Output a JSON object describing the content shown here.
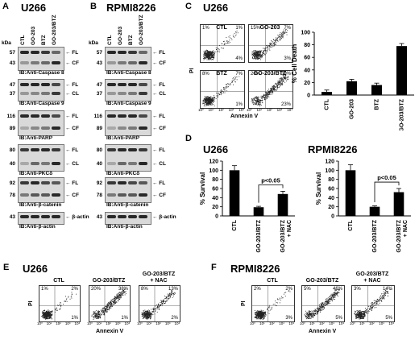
{
  "panels": {
    "A": {
      "letter": "A",
      "title": "U266",
      "lanes": [
        "CTL",
        "GO-203",
        "BTZ",
        "GO-203/BTZ"
      ],
      "kda_label": "kDa",
      "blots": [
        {
          "mw": [
            "57",
            "43"
          ],
          "arrows": [
            "FL",
            "CF"
          ],
          "ib": "IB:Anti-Caspase 8"
        },
        {
          "mw": [
            "47",
            "37"
          ],
          "arrows": [
            "FL",
            "CL"
          ],
          "ib": "IB:Anti-Caspase 9"
        },
        {
          "mw": [
            "116",
            "89"
          ],
          "arrows": [
            "FL",
            "CF"
          ],
          "ib": "IB:Anti-PARP"
        },
        {
          "mw": [
            "80",
            "40"
          ],
          "arrows": [
            "FL",
            "CL"
          ],
          "ib": "IB:Anti-PKCδ"
        },
        {
          "mw": [
            "92",
            "78"
          ],
          "arrows": [
            "FL",
            "CF"
          ],
          "ib": "IB:Anti-β-catenin"
        },
        {
          "mw": [
            "43"
          ],
          "arrows": [
            "β-actin"
          ],
          "ib": "IB:Anti-β-actin"
        }
      ]
    },
    "B": {
      "letter": "B",
      "title": "RPMI8226",
      "lanes": [
        "CTL",
        "GO-203",
        "BTZ",
        "GO-203/BTZ"
      ],
      "kda_label": "kDa",
      "blots": [
        {
          "mw": [
            "57",
            "43"
          ],
          "arrows": [
            "FL",
            "CF"
          ],
          "ib": "IB:Anti-Caspase 8"
        },
        {
          "mw": [
            "47",
            "37"
          ],
          "arrows": [
            "FL",
            "CL"
          ],
          "ib": "IB:Anti-Caspase 9"
        },
        {
          "mw": [
            "116",
            "89"
          ],
          "arrows": [
            "FL",
            "CF"
          ],
          "ib": "IB:Anti-PARP"
        },
        {
          "mw": [
            "80",
            "40"
          ],
          "arrows": [
            "FL",
            "CL"
          ],
          "ib": "IB:Anti-PKCδ"
        },
        {
          "mw": [
            "92",
            "78"
          ],
          "arrows": [
            "FL",
            "CF"
          ],
          "ib": "IB:Anti-β-catenin"
        },
        {
          "mw": [
            "43"
          ],
          "arrows": [
            "β-actin"
          ],
          "ib": "IB:Anti-β-actin"
        }
      ]
    },
    "C": {
      "letter": "C",
      "title": "U266",
      "x_axis": "Annexin V",
      "y_axis": "PI",
      "plots": [
        {
          "label": "CTL",
          "q": [
            "1%",
            "1%",
            "",
            "4%"
          ]
        },
        {
          "label": "GO-203",
          "q": [
            "15%",
            "7%",
            "",
            "3%"
          ]
        },
        {
          "label": "BTZ",
          "q": [
            "8%",
            "7%",
            "",
            "1%"
          ]
        },
        {
          "label": "GO-203/BTZ",
          "q": [
            "20%",
            "39%",
            "",
            "23%"
          ]
        }
      ]
    },
    "D": {
      "letter": "D",
      "title_left": "U266",
      "title_right": "RPMI8226"
    },
    "E": {
      "letter": "E",
      "title": "U266",
      "x_axis": "Annexin V",
      "y_axis": "PI",
      "plots": [
        {
          "label": "CTL",
          "q": [
            "1%",
            "2%",
            "",
            "1%"
          ]
        },
        {
          "label": "GO-203/BTZ",
          "q": [
            "20%",
            "38%",
            "",
            "1%"
          ]
        },
        {
          "label": "GO-203/BTZ\n+ NAC",
          "q": [
            "8%",
            "13%",
            "",
            "2%"
          ]
        }
      ]
    },
    "F": {
      "letter": "F",
      "title": "RPMI8226",
      "x_axis": "Annexin V",
      "y_axis": "PI",
      "plots": [
        {
          "label": "CTL",
          "q": [
            "2%",
            "2%",
            "",
            "3%"
          ]
        },
        {
          "label": "GO-203/BTZ",
          "q": [
            "5%",
            "46%",
            "",
            "5%"
          ]
        },
        {
          "label": "GO-203/BTZ\n+ NAC",
          "q": [
            "3%",
            "14%",
            "",
            "5%"
          ]
        }
      ]
    }
  },
  "chart_data": [
    {
      "type": "bar",
      "panel": "C",
      "categories": [
        "CTL",
        "GO-203",
        "BTZ",
        "GO-203/BTZ"
      ],
      "values": [
        5,
        22,
        16,
        78
      ],
      "errors": [
        3,
        3,
        3,
        4
      ],
      "ylabel": "% Cell Death",
      "ylim": [
        0,
        100
      ],
      "yticks": [
        "0",
        "20",
        "40",
        "60",
        "80",
        "100"
      ]
    },
    {
      "type": "bar",
      "panel": "D-left",
      "categories": [
        "CTL",
        "GO-203/BTZ",
        "GO-203/BTZ + NAC"
      ],
      "values": [
        100,
        19,
        48
      ],
      "errors": [
        10,
        2,
        6
      ],
      "ylabel": "% Survival",
      "ylim": [
        0,
        120
      ],
      "yticks": [
        "0",
        "20",
        "40",
        "60",
        "80",
        "100",
        "120"
      ],
      "annotation": "p<0.05"
    },
    {
      "type": "bar",
      "panel": "D-right",
      "categories": [
        "CTL",
        "GO-203/BTZ",
        "GO-203/BTZ + NAC"
      ],
      "values": [
        100,
        20,
        52
      ],
      "errors": [
        12,
        2,
        8
      ],
      "ylabel": "% Survival",
      "ylim": [
        0,
        120
      ],
      "yticks": [
        "0",
        "20",
        "40",
        "60",
        "80",
        "100",
        "120"
      ],
      "annotation": "p<0.05"
    }
  ],
  "flow_ticks": [
    "10⁰",
    "10¹",
    "10²",
    "10³",
    "10⁴"
  ]
}
